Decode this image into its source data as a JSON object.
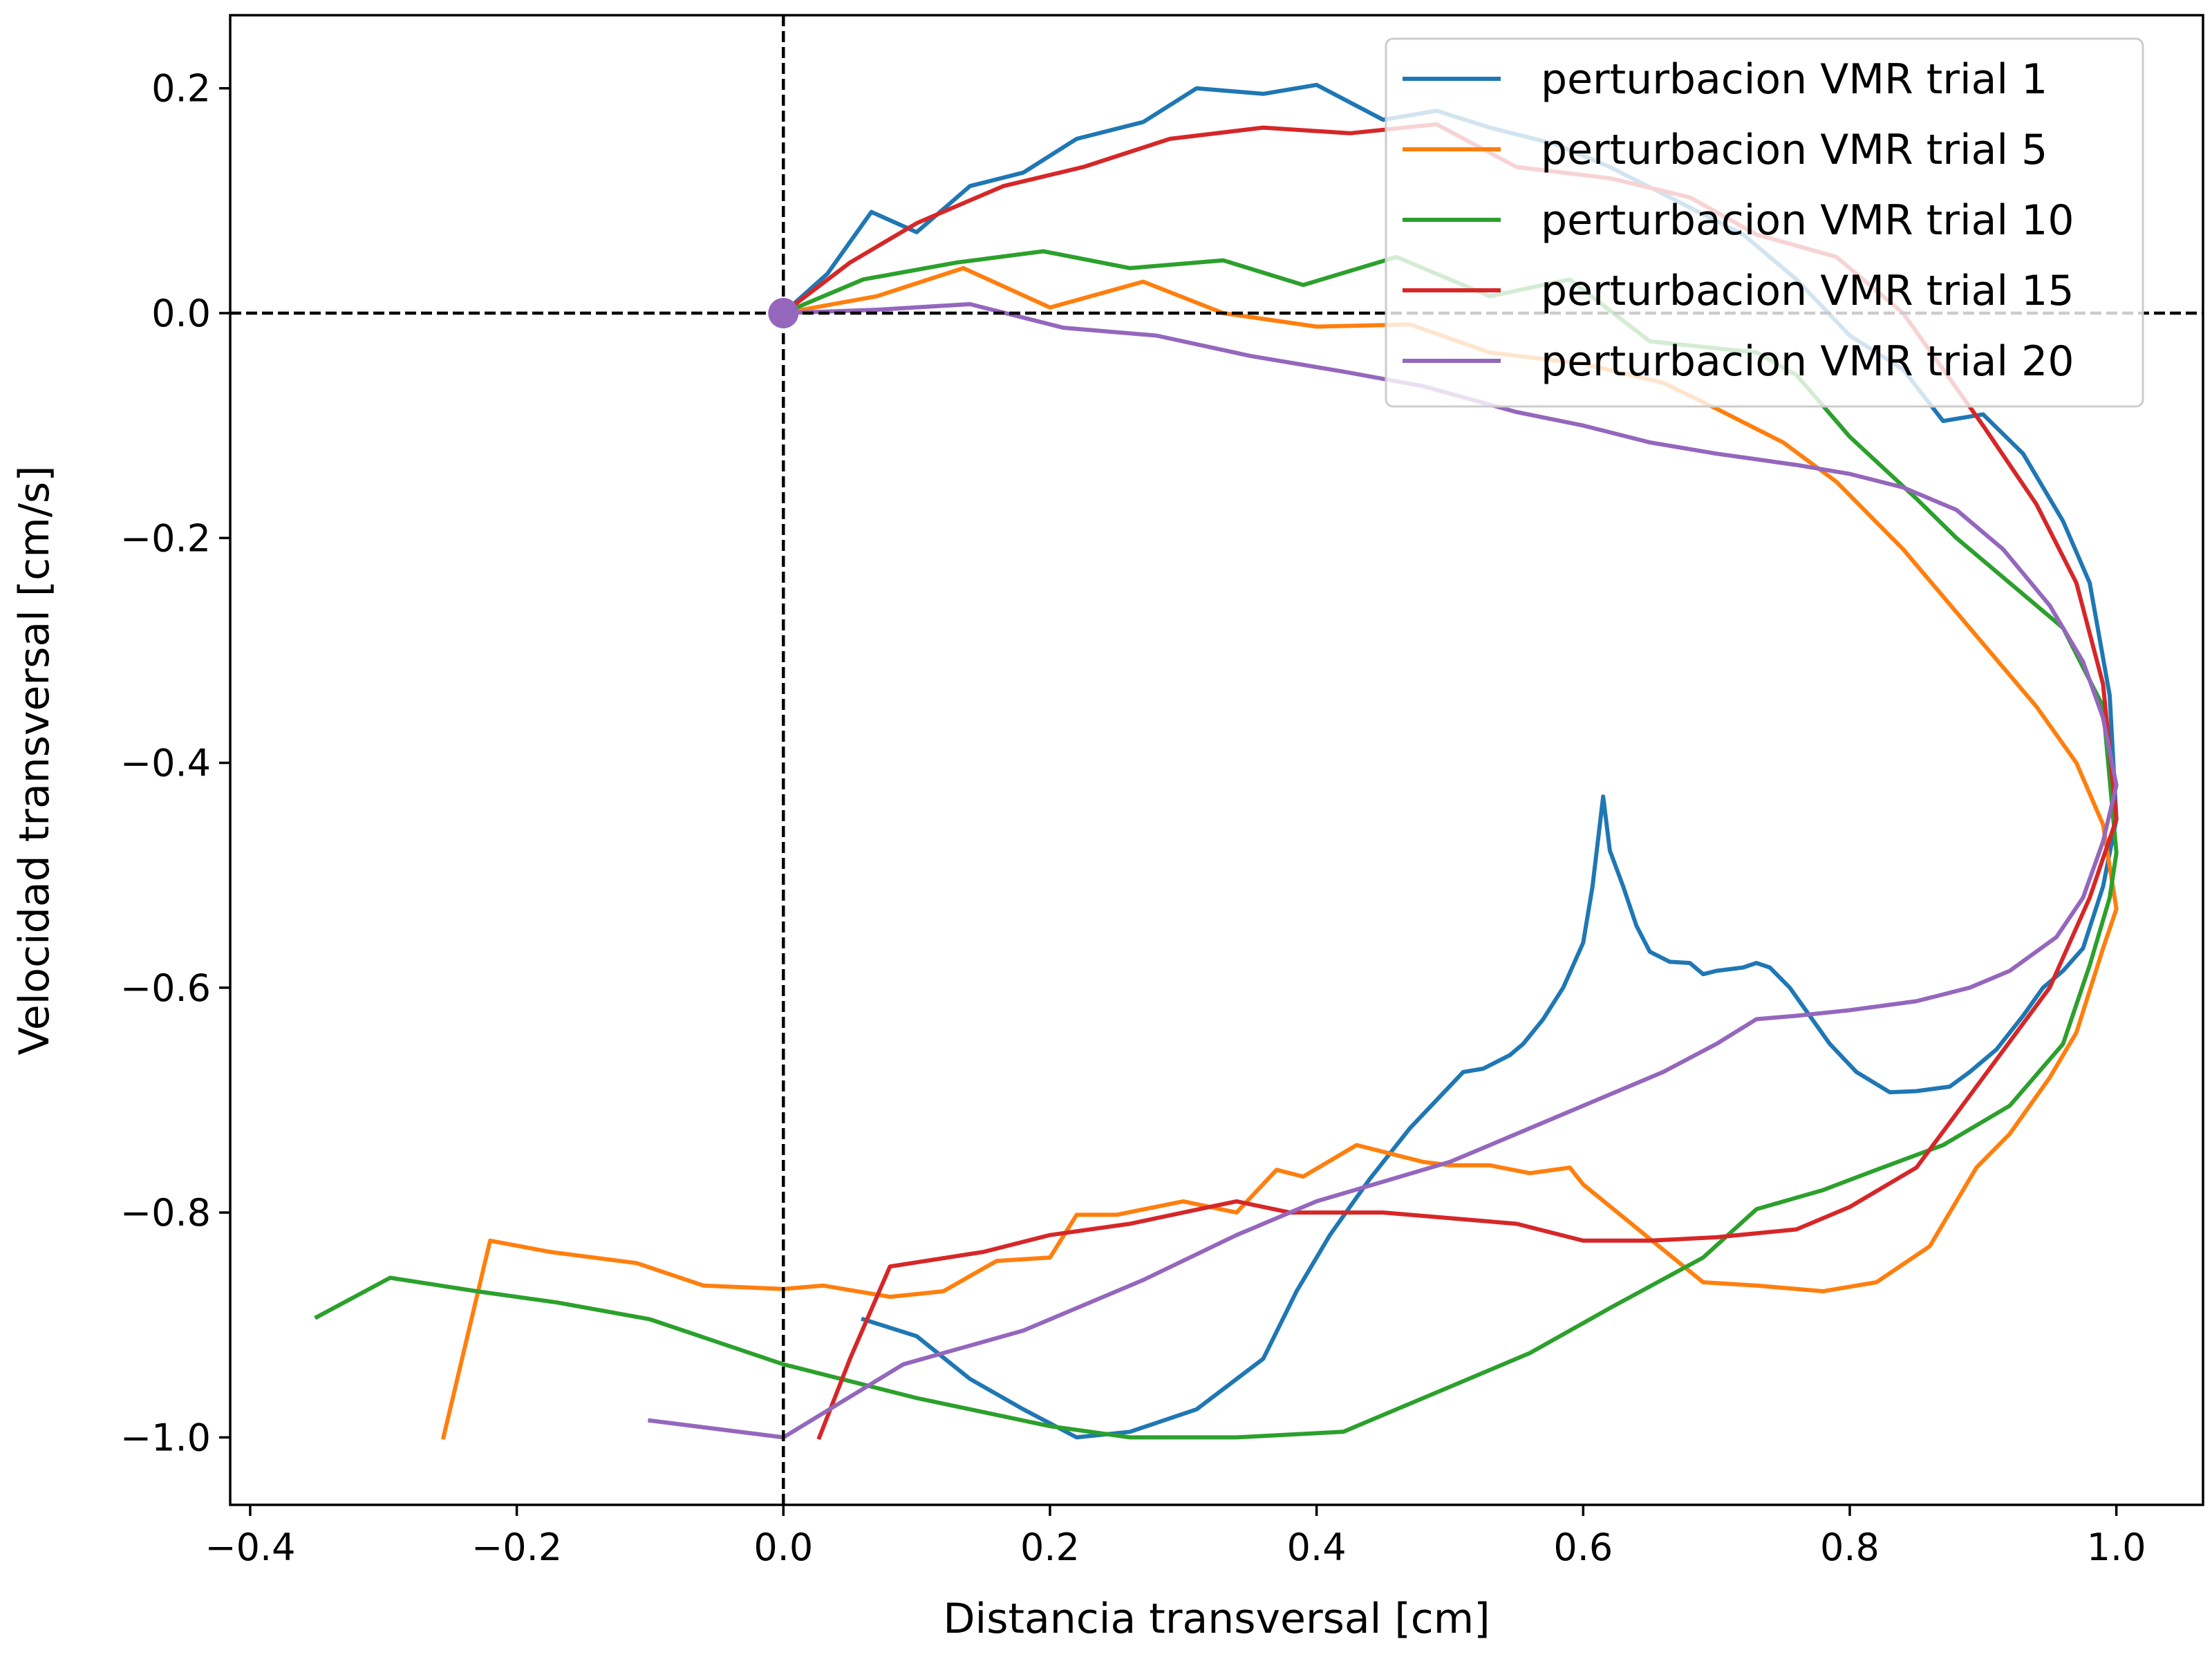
{
  "chart_data": {
    "type": "line",
    "title": "",
    "xlabel": "Distancia transversal [cm]",
    "ylabel": "Velocidad transversal [cm/s]",
    "xlim": [
      -0.415,
      1.065
    ],
    "ylim": [
      -1.06,
      0.265
    ],
    "xticks": [
      -0.4,
      -0.2,
      0.0,
      0.2,
      0.4,
      0.6,
      0.8,
      1.0
    ],
    "xtick_labels": [
      "−0.4",
      "−0.2",
      "0.0",
      "0.2",
      "0.4",
      "0.6",
      "0.8",
      "1.0"
    ],
    "yticks": [
      0.2,
      0.0,
      -0.2,
      -0.4,
      -0.6,
      -0.8,
      -1.0
    ],
    "ytick_labels": [
      "0.2",
      "0.0",
      "−0.2",
      "−0.4",
      "−0.6",
      "−0.8",
      "−1.0"
    ],
    "grid": false,
    "legend_position": "top-right",
    "reference_lines": {
      "x": 0,
      "y": 0,
      "style": "dashed",
      "color": "#000000"
    },
    "origin_marker": {
      "x": 0,
      "y": 0,
      "color": "#9467bd"
    },
    "series": [
      {
        "name": "perturbacion VMR trial 1",
        "color": "#1f77b4",
        "points": [
          [
            0,
            0
          ],
          [
            0.033,
            0.035
          ],
          [
            0.066,
            0.09
          ],
          [
            0.1,
            0.072
          ],
          [
            0.14,
            0.113
          ],
          [
            0.18,
            0.125
          ],
          [
            0.22,
            0.155
          ],
          [
            0.27,
            0.17
          ],
          [
            0.31,
            0.2
          ],
          [
            0.36,
            0.195
          ],
          [
            0.4,
            0.203
          ],
          [
            0.45,
            0.172
          ],
          [
            0.49,
            0.18
          ],
          [
            0.53,
            0.165
          ],
          [
            0.58,
            0.15
          ],
          [
            0.62,
            0.13
          ],
          [
            0.67,
            0.1
          ],
          [
            0.72,
            0.07
          ],
          [
            0.76,
            0.03
          ],
          [
            0.8,
            -0.02
          ],
          [
            0.84,
            -0.05
          ],
          [
            0.87,
            -0.096
          ],
          [
            0.9,
            -0.09
          ],
          [
            0.93,
            -0.125
          ],
          [
            0.96,
            -0.185
          ],
          [
            0.98,
            -0.24
          ],
          [
            0.995,
            -0.34
          ],
          [
            1.0,
            -0.45
          ],
          [
            0.99,
            -0.51
          ],
          [
            0.975,
            -0.565
          ],
          [
            0.96,
            -0.585
          ],
          [
            0.945,
            -0.6
          ],
          [
            0.93,
            -0.625
          ],
          [
            0.91,
            -0.655
          ],
          [
            0.89,
            -0.675
          ],
          [
            0.875,
            -0.688
          ],
          [
            0.85,
            -0.692
          ],
          [
            0.83,
            -0.693
          ],
          [
            0.805,
            -0.675
          ],
          [
            0.785,
            -0.65
          ],
          [
            0.77,
            -0.625
          ],
          [
            0.755,
            -0.6
          ],
          [
            0.74,
            -0.582
          ],
          [
            0.73,
            -0.578
          ],
          [
            0.72,
            -0.582
          ],
          [
            0.7,
            -0.585
          ],
          [
            0.69,
            -0.588
          ],
          [
            0.68,
            -0.578
          ],
          [
            0.665,
            -0.577
          ],
          [
            0.65,
            -0.568
          ],
          [
            0.64,
            -0.545
          ],
          [
            0.63,
            -0.51
          ],
          [
            0.62,
            -0.478
          ],
          [
            0.615,
            -0.43
          ],
          [
            0.607,
            -0.51
          ],
          [
            0.6,
            -0.56
          ],
          [
            0.585,
            -0.6
          ],
          [
            0.57,
            -0.628
          ],
          [
            0.555,
            -0.65
          ],
          [
            0.545,
            -0.66
          ],
          [
            0.525,
            -0.672
          ],
          [
            0.51,
            -0.675
          ],
          [
            0.49,
            -0.7
          ],
          [
            0.47,
            -0.725
          ],
          [
            0.44,
            -0.77
          ],
          [
            0.41,
            -0.82
          ],
          [
            0.385,
            -0.87
          ],
          [
            0.36,
            -0.93
          ],
          [
            0.31,
            -0.975
          ],
          [
            0.26,
            -0.995
          ],
          [
            0.22,
            -1.0
          ],
          [
            0.18,
            -0.975
          ],
          [
            0.14,
            -0.948
          ],
          [
            0.1,
            -0.91
          ],
          [
            0.06,
            -0.895
          ]
        ]
      },
      {
        "name": "perturbacion VMR trial 5",
        "color": "#ff7f0e",
        "points": [
          [
            0,
            0
          ],
          [
            0.07,
            0.015
          ],
          [
            0.135,
            0.04
          ],
          [
            0.2,
            0.005
          ],
          [
            0.27,
            0.028
          ],
          [
            0.33,
            0.0
          ],
          [
            0.4,
            -0.012
          ],
          [
            0.47,
            -0.01
          ],
          [
            0.53,
            -0.035
          ],
          [
            0.6,
            -0.045
          ],
          [
            0.66,
            -0.062
          ],
          [
            0.7,
            -0.085
          ],
          [
            0.75,
            -0.115
          ],
          [
            0.79,
            -0.15
          ],
          [
            0.84,
            -0.21
          ],
          [
            0.89,
            -0.28
          ],
          [
            0.94,
            -0.35
          ],
          [
            0.97,
            -0.4
          ],
          [
            0.99,
            -0.455
          ],
          [
            1.0,
            -0.53
          ],
          [
            0.99,
            -0.565
          ],
          [
            0.97,
            -0.64
          ],
          [
            0.95,
            -0.68
          ],
          [
            0.92,
            -0.73
          ],
          [
            0.895,
            -0.76
          ],
          [
            0.875,
            -0.8
          ],
          [
            0.86,
            -0.83
          ],
          [
            0.82,
            -0.862
          ],
          [
            0.78,
            -0.87
          ],
          [
            0.73,
            -0.865
          ],
          [
            0.69,
            -0.862
          ],
          [
            0.6,
            -0.775
          ],
          [
            0.59,
            -0.76
          ],
          [
            0.56,
            -0.765
          ],
          [
            0.53,
            -0.758
          ],
          [
            0.5,
            -0.758
          ],
          [
            0.48,
            -0.755
          ],
          [
            0.43,
            -0.74
          ],
          [
            0.39,
            -0.768
          ],
          [
            0.37,
            -0.762
          ],
          [
            0.34,
            -0.8
          ],
          [
            0.3,
            -0.79
          ],
          [
            0.25,
            -0.802
          ],
          [
            0.22,
            -0.802
          ],
          [
            0.2,
            -0.84
          ],
          [
            0.16,
            -0.843
          ],
          [
            0.12,
            -0.87
          ],
          [
            0.08,
            -0.875
          ],
          [
            0.03,
            -0.865
          ],
          [
            0.0,
            -0.868
          ],
          [
            -0.06,
            -0.865
          ],
          [
            -0.11,
            -0.845
          ],
          [
            -0.175,
            -0.835
          ],
          [
            -0.22,
            -0.825
          ],
          [
            -0.255,
            -1.0
          ]
        ]
      },
      {
        "name": "perturbacion VMR trial 10",
        "color": "#2ca02c",
        "points": [
          [
            0,
            0
          ],
          [
            0.06,
            0.03
          ],
          [
            0.13,
            0.045
          ],
          [
            0.195,
            0.055
          ],
          [
            0.26,
            0.04
          ],
          [
            0.33,
            0.047
          ],
          [
            0.39,
            0.025
          ],
          [
            0.46,
            0.05
          ],
          [
            0.53,
            0.015
          ],
          [
            0.59,
            0.03
          ],
          [
            0.65,
            -0.025
          ],
          [
            0.73,
            -0.035
          ],
          [
            0.76,
            -0.055
          ],
          [
            0.8,
            -0.11
          ],
          [
            0.85,
            -0.165
          ],
          [
            0.88,
            -0.2
          ],
          [
            0.92,
            -0.24
          ],
          [
            0.96,
            -0.28
          ],
          [
            0.99,
            -0.35
          ],
          [
            1.0,
            -0.48
          ],
          [
            0.995,
            -0.52
          ],
          [
            0.98,
            -0.58
          ],
          [
            0.96,
            -0.65
          ],
          [
            0.92,
            -0.705
          ],
          [
            0.87,
            -0.74
          ],
          [
            0.82,
            -0.762
          ],
          [
            0.78,
            -0.78
          ],
          [
            0.73,
            -0.797
          ],
          [
            0.69,
            -0.84
          ],
          [
            0.62,
            -0.885
          ],
          [
            0.56,
            -0.925
          ],
          [
            0.42,
            -0.995
          ],
          [
            0.34,
            -1.0
          ],
          [
            0.26,
            -1.0
          ],
          [
            0.2,
            -0.99
          ],
          [
            0.1,
            -0.965
          ],
          [
            0.0,
            -0.935
          ],
          [
            -0.1,
            -0.895
          ],
          [
            -0.17,
            -0.88
          ],
          [
            -0.23,
            -0.87
          ],
          [
            -0.295,
            -0.858
          ],
          [
            -0.35,
            -0.893
          ]
        ]
      },
      {
        "name": "perturbacion VMR trial 15",
        "color": "#d62728",
        "points": [
          [
            0,
            0
          ],
          [
            0.05,
            0.045
          ],
          [
            0.1,
            0.08
          ],
          [
            0.165,
            0.113
          ],
          [
            0.225,
            0.13
          ],
          [
            0.29,
            0.155
          ],
          [
            0.36,
            0.165
          ],
          [
            0.425,
            0.16
          ],
          [
            0.49,
            0.168
          ],
          [
            0.55,
            0.13
          ],
          [
            0.62,
            0.12
          ],
          [
            0.68,
            0.103
          ],
          [
            0.73,
            0.07
          ],
          [
            0.79,
            0.05
          ],
          [
            0.84,
            0.0
          ],
          [
            0.87,
            -0.05
          ],
          [
            0.9,
            -0.1
          ],
          [
            0.94,
            -0.17
          ],
          [
            0.97,
            -0.24
          ],
          [
            0.99,
            -0.33
          ],
          [
            1.0,
            -0.45
          ],
          [
            0.98,
            -0.52
          ],
          [
            0.95,
            -0.6
          ],
          [
            0.9,
            -0.68
          ],
          [
            0.85,
            -0.76
          ],
          [
            0.8,
            -0.795
          ],
          [
            0.76,
            -0.815
          ],
          [
            0.7,
            -0.822
          ],
          [
            0.65,
            -0.825
          ],
          [
            0.6,
            -0.825
          ],
          [
            0.55,
            -0.81
          ],
          [
            0.5,
            -0.805
          ],
          [
            0.45,
            -0.8
          ],
          [
            0.38,
            -0.8
          ],
          [
            0.34,
            -0.79
          ],
          [
            0.3,
            -0.8
          ],
          [
            0.26,
            -0.81
          ],
          [
            0.2,
            -0.82
          ],
          [
            0.15,
            -0.835
          ],
          [
            0.08,
            -0.848
          ],
          [
            0.05,
            -0.93
          ],
          [
            0.027,
            -1.0
          ]
        ]
      },
      {
        "name": "perturbacion VMR trial 20",
        "color": "#9467bd",
        "points": [
          [
            0,
            0
          ],
          [
            0.07,
            0.003
          ],
          [
            0.14,
            0.008
          ],
          [
            0.21,
            -0.013
          ],
          [
            0.28,
            -0.02
          ],
          [
            0.35,
            -0.038
          ],
          [
            0.42,
            -0.052
          ],
          [
            0.48,
            -0.065
          ],
          [
            0.55,
            -0.088
          ],
          [
            0.6,
            -0.1
          ],
          [
            0.65,
            -0.115
          ],
          [
            0.7,
            -0.125
          ],
          [
            0.76,
            -0.135
          ],
          [
            0.8,
            -0.143
          ],
          [
            0.84,
            -0.155
          ],
          [
            0.88,
            -0.175
          ],
          [
            0.915,
            -0.21
          ],
          [
            0.95,
            -0.26
          ],
          [
            0.975,
            -0.31
          ],
          [
            0.99,
            -0.36
          ],
          [
            1.0,
            -0.42
          ],
          [
            0.99,
            -0.47
          ],
          [
            0.975,
            -0.52
          ],
          [
            0.955,
            -0.555
          ],
          [
            0.92,
            -0.585
          ],
          [
            0.89,
            -0.6
          ],
          [
            0.85,
            -0.612
          ],
          [
            0.8,
            -0.62
          ],
          [
            0.76,
            -0.625
          ],
          [
            0.73,
            -0.628
          ],
          [
            0.7,
            -0.65
          ],
          [
            0.66,
            -0.675
          ],
          [
            0.6,
            -0.705
          ],
          [
            0.55,
            -0.73
          ],
          [
            0.5,
            -0.755
          ],
          [
            0.4,
            -0.79
          ],
          [
            0.34,
            -0.82
          ],
          [
            0.27,
            -0.86
          ],
          [
            0.18,
            -0.905
          ],
          [
            0.09,
            -0.935
          ],
          [
            0.0,
            -1.0
          ],
          [
            -0.1,
            -0.985
          ]
        ]
      }
    ]
  }
}
